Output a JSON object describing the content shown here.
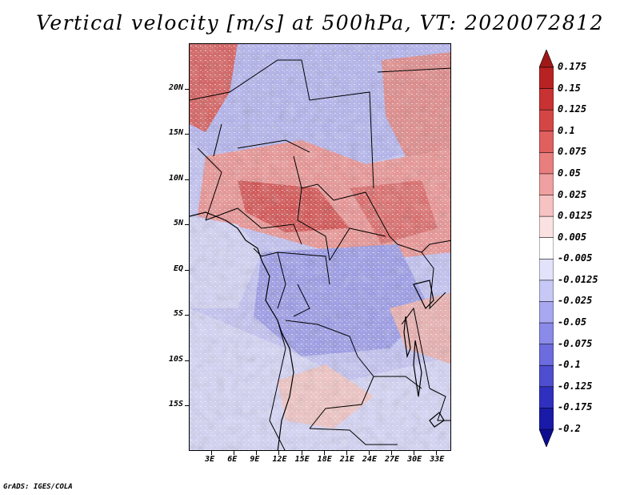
{
  "title": "Vertical velocity [m/s] at 500hPa, VT: 2020072812",
  "footer": "GrADS: IGES/COLA",
  "map": {
    "lat_labels": [
      "20N",
      "15N",
      "10N",
      "5N",
      "EQ",
      "5S",
      "10S",
      "15S"
    ],
    "lat_values": [
      20,
      15,
      10,
      5,
      0,
      -5,
      -10,
      -15
    ],
    "lon_labels": [
      "3E",
      "6E",
      "9E",
      "12E",
      "15E",
      "18E",
      "21E",
      "24E",
      "27E",
      "30E",
      "33E"
    ],
    "lon_values": [
      3,
      6,
      9,
      12,
      15,
      18,
      21,
      24,
      27,
      30,
      33
    ],
    "lon_range": [
      0,
      35
    ],
    "lat_range": [
      -20,
      25
    ]
  },
  "colorbar": {
    "labels": [
      "0.175",
      "0.15",
      "0.125",
      "0.1",
      "0.075",
      "0.05",
      "0.025",
      "0.0125",
      "0.005",
      "-0.005",
      "-0.0125",
      "-0.025",
      "-0.05",
      "-0.075",
      "-0.1",
      "-0.125",
      "-0.175",
      "-0.2"
    ],
    "colors": [
      "#a01818",
      "#b82222",
      "#c83232",
      "#d44646",
      "#e06060",
      "#e87e7e",
      "#f0a0a0",
      "#f6c2c2",
      "#fbe2e2",
      "#ffffff",
      "#e2e2fb",
      "#c8c8f6",
      "#a8a8f0",
      "#8a8ae8",
      "#6c6cde",
      "#4e4ed0",
      "#3030c0",
      "#1a1aa8",
      "#0c0c90"
    ]
  }
}
